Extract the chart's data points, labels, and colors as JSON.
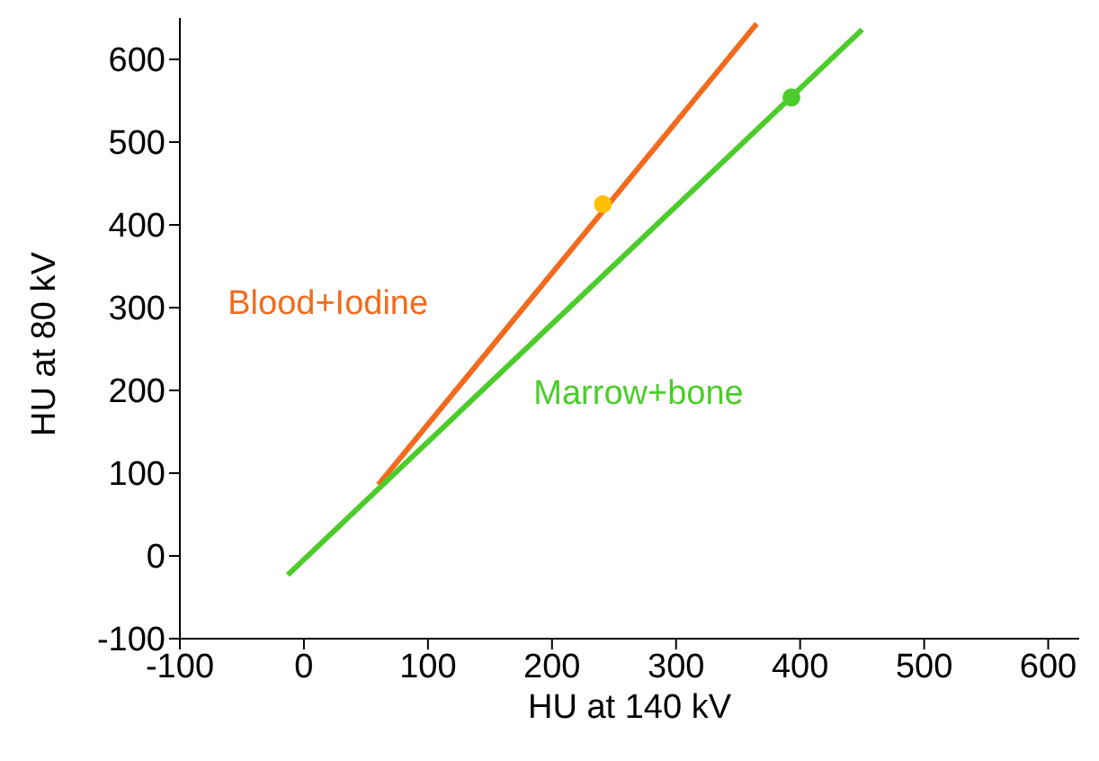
{
  "chart_data": {
    "type": "line",
    "xlabel": "HU at 140 kV",
    "ylabel": "HU at 80 kV",
    "series": [
      {
        "name": "Blood+Iodine",
        "color": "#f26b1d",
        "x": [
          60,
          365
        ],
        "values": [
          86,
          643
        ]
      },
      {
        "name": "Marrow+bone",
        "color": "#4ccc2a",
        "x": [
          -13,
          450
        ],
        "values": [
          -23,
          636
        ]
      },
      {
        "type": "scatter",
        "marker": "circle",
        "color": "#ffc000",
        "x": [
          241
        ],
        "values": [
          425
        ]
      },
      {
        "type": "scatter",
        "marker": "circle",
        "color": "#4ccc2a",
        "x": [
          393
        ],
        "values": [
          554
        ]
      }
    ],
    "xlim": [
      -100,
      625
    ],
    "xticks": [
      -100,
      0,
      100,
      200,
      300,
      400,
      500,
      600
    ],
    "ylim": [
      -100,
      650
    ],
    "yticks": [
      -100,
      0,
      100,
      200,
      300,
      400,
      500,
      600
    ],
    "grid": false,
    "legend": false
  }
}
